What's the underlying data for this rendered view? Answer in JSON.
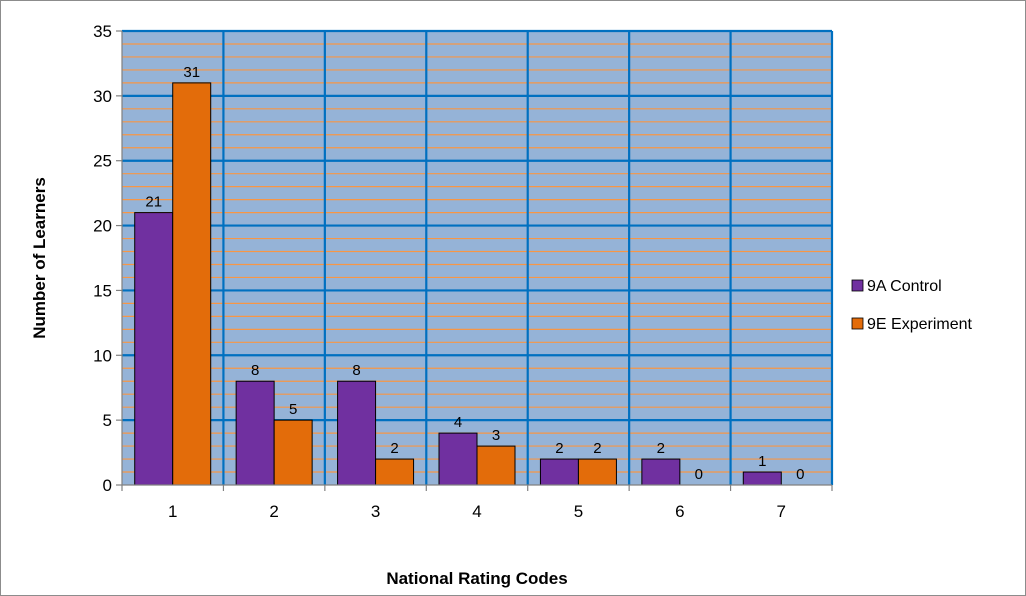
{
  "chart_data": {
    "type": "bar",
    "title": "",
    "xlabel": "National Rating Codes",
    "ylabel": "Number of Learners",
    "categories": [
      "1",
      "2",
      "3",
      "4",
      "5",
      "6",
      "7"
    ],
    "series": [
      {
        "name": "9A Control",
        "color": "#7030a0",
        "values": [
          21,
          8,
          8,
          4,
          2,
          2,
          1
        ],
        "labels": [
          "21",
          "8",
          "8",
          "4",
          "2",
          "2",
          "1"
        ]
      },
      {
        "name": "9E Experiment",
        "color": "#e36c0a",
        "values": [
          31,
          5,
          2,
          3,
          2,
          0,
          0
        ],
        "labels": [
          "31",
          "5",
          "2",
          "3",
          "2",
          "0",
          "0"
        ]
      }
    ],
    "ylim": [
      0,
      35
    ],
    "yticks": [
      "0",
      "5",
      "10",
      "15",
      "20",
      "25",
      "30",
      "35"
    ],
    "grid": true,
    "legend_position": "right",
    "plot_background": "#95b3d7",
    "major_gridline_color": "#0070c0",
    "minor_gridline_color": "#f79646"
  }
}
